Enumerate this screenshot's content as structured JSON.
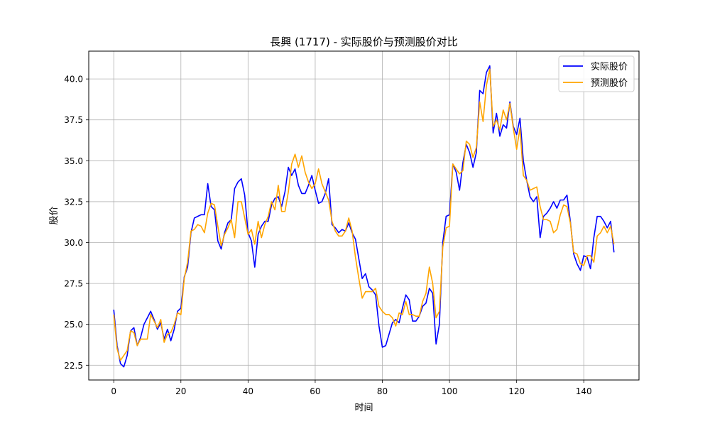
{
  "chart_data": {
    "type": "line",
    "title": "長興 (1717) - 实际股价与预测股价对比",
    "xlabel": "时间",
    "ylabel": "股价",
    "xlim": [
      -7.45,
      156.45
    ],
    "ylim": [
      21.6,
      41.7
    ],
    "xticks": [
      0,
      20,
      40,
      60,
      80,
      100,
      120,
      140
    ],
    "yticks": [
      22.5,
      25.0,
      27.5,
      30.0,
      32.5,
      35.0,
      37.5,
      40.0
    ],
    "ytick_labels": [
      "22.5",
      "25.0",
      "27.5",
      "30.0",
      "32.5",
      "35.0",
      "37.5",
      "40.0"
    ],
    "grid": true,
    "legend_position": "top-right",
    "series": [
      {
        "name": "实际股价",
        "color": "#0000ff",
        "values": [
          25.9,
          23.7,
          22.6,
          22.4,
          23.1,
          24.6,
          24.8,
          23.7,
          24.2,
          25.0,
          25.4,
          25.8,
          25.3,
          24.7,
          25.1,
          24.1,
          24.7,
          24.0,
          24.7,
          25.8,
          26.0,
          27.9,
          28.5,
          30.6,
          31.5,
          31.6,
          31.7,
          31.7,
          33.6,
          32.2,
          32.0,
          30.1,
          29.6,
          30.6,
          31.2,
          31.4,
          33.3,
          33.7,
          33.9,
          32.9,
          30.6,
          30.1,
          28.5,
          30.5,
          31.0,
          31.3,
          31.3,
          32.3,
          32.7,
          32.8,
          32.2,
          33.1,
          34.6,
          34.1,
          34.5,
          33.5,
          33.0,
          33.0,
          33.5,
          34.1,
          33.2,
          32.4,
          32.5,
          33.0,
          33.9,
          31.1,
          30.9,
          30.6,
          30.8,
          30.7,
          31.2,
          30.6,
          30.2,
          29.0,
          27.8,
          28.1,
          27.3,
          27.1,
          26.8,
          24.9,
          23.6,
          23.7,
          24.4,
          25.1,
          25.3,
          25.1,
          26.0,
          26.8,
          26.5,
          25.2,
          25.2,
          25.5,
          26.1,
          26.3,
          27.2,
          26.9,
          23.8,
          25.0,
          30.0,
          31.6,
          31.7,
          34.8,
          34.3,
          33.2,
          34.9,
          36.0,
          35.5,
          34.6,
          35.5,
          39.3,
          39.1,
          40.4,
          40.8,
          36.7,
          37.9,
          36.5,
          37.2,
          37.0,
          38.6,
          37.1,
          36.6,
          37.6,
          35.0,
          33.8,
          32.8,
          32.5,
          32.8,
          30.3,
          31.6,
          31.8,
          32.1,
          32.5,
          32.1,
          32.6,
          32.6,
          32.9,
          31.3,
          29.3,
          28.7,
          28.3,
          29.2,
          29.1,
          28.4,
          30.3,
          31.6,
          31.6,
          31.3,
          30.9,
          31.3,
          29.4
        ]
      },
      {
        "name": "预测股价",
        "color": "#ffa500",
        "values": [
          25.6,
          23.5,
          22.8,
          23.1,
          23.4,
          24.6,
          24.5,
          23.7,
          24.1,
          24.1,
          24.1,
          25.6,
          25.2,
          24.8,
          25.3,
          23.9,
          24.4,
          24.5,
          25.0,
          25.7,
          25.6,
          27.8,
          28.8,
          30.7,
          30.8,
          31.1,
          31.0,
          30.6,
          31.8,
          32.4,
          32.3,
          31.0,
          29.8,
          30.5,
          30.9,
          31.4,
          30.3,
          32.5,
          32.5,
          31.5,
          30.5,
          30.8,
          29.9,
          31.3,
          30.3,
          31.1,
          31.6,
          32.5,
          32.0,
          33.5,
          31.9,
          31.9,
          33.1,
          34.8,
          35.4,
          34.6,
          35.3,
          34.3,
          33.7,
          33.3,
          33.6,
          34.5,
          33.6,
          33.1,
          32.6,
          31.3,
          30.7,
          30.4,
          30.4,
          30.7,
          31.5,
          30.7,
          29.1,
          27.8,
          26.6,
          27.0,
          27.0,
          27.0,
          27.2,
          26.1,
          25.8,
          25.6,
          25.6,
          25.4,
          24.9,
          25.7,
          25.6,
          26.4,
          25.6,
          25.6,
          25.5,
          25.5,
          26.4,
          26.9,
          28.5,
          27.5,
          25.4,
          25.8,
          29.7,
          30.9,
          31.0,
          34.8,
          34.5,
          34.2,
          34.4,
          36.2,
          36.0,
          35.2,
          35.8,
          38.6,
          37.4,
          39.6,
          40.6,
          37.1,
          37.5,
          36.9,
          38.1,
          37.5,
          38.5,
          37.0,
          35.7,
          37.0,
          34.1,
          33.8,
          33.2,
          33.3,
          33.4,
          32.2,
          31.4,
          31.4,
          31.3,
          30.6,
          30.8,
          31.7,
          32.3,
          32.2,
          31.2,
          29.4,
          29.3,
          28.7,
          28.6,
          29.2,
          29.2,
          28.8,
          30.4,
          30.6,
          31.0,
          30.6,
          31.0,
          29.9
        ]
      }
    ]
  }
}
